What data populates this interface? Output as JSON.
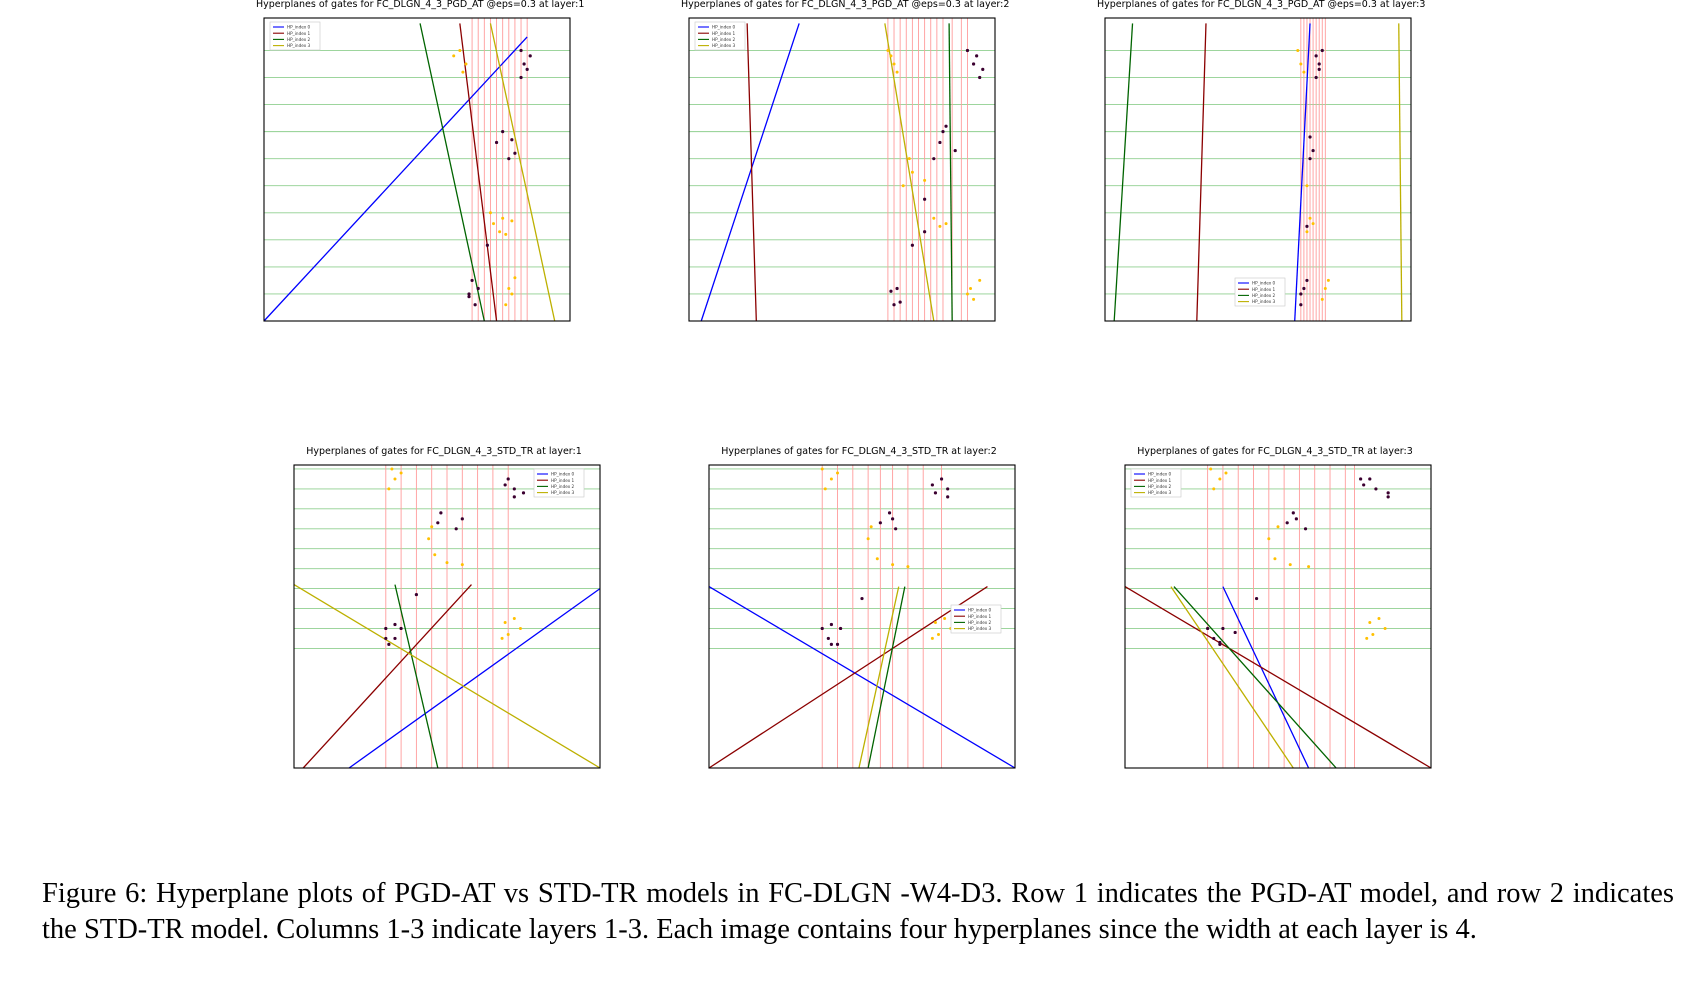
{
  "figure": {
    "caption": "Figure 6: Hyperplane plots of PGD-AT vs STD-TR models in FC-DLGN -W4-D3. Row 1 indicates the PGD-AT model, and row 2 indicates the STD-TR model. Columns 1-3 indicate layers 1-3. Each image contains four hyperplanes since the width at each layer is 4."
  },
  "colors": {
    "hp0": "#0000ff",
    "hp1": "#8b0000",
    "hp2": "#006400",
    "hp3": "#bdb000",
    "threshold_h": "#8fcf8f",
    "threshold_v": "#ff9c9c",
    "class0": "#3b0030",
    "class1": "#ffc000"
  },
  "legend_labels": [
    "HP_index 0",
    "HP_index 1",
    "HP_index 2",
    "HP_index 3"
  ],
  "chart_data": [
    {
      "type": "scatter",
      "title": "Hyperplanes of gates for FC_DLGN_4_3_PGD_AT @eps=0.3 at layer:1",
      "legend": "top-left",
      "hlines": [
        0.1,
        0.2,
        0.3,
        0.4,
        0.5,
        0.6,
        0.7,
        0.8,
        0.9,
        1.0
      ],
      "vlines": [
        0.68,
        0.7,
        0.72,
        0.74,
        0.76,
        0.78,
        0.8,
        0.82,
        0.84,
        0.86
      ],
      "hyperplanes": [
        {
          "p1": [
            0.0,
            0.0
          ],
          "p2": [
            0.86,
            1.05
          ]
        },
        {
          "p1": [
            0.76,
            0.0
          ],
          "p2": [
            0.64,
            1.1
          ]
        },
        {
          "p1": [
            0.72,
            0.0
          ],
          "p2": [
            0.51,
            1.1
          ]
        },
        {
          "p1": [
            0.95,
            0.0
          ],
          "p2": [
            0.74,
            1.1
          ]
        }
      ],
      "class0": [
        [
          0.67,
          0.1
        ],
        [
          0.68,
          0.15
        ],
        [
          0.7,
          0.12
        ],
        [
          0.69,
          0.06
        ],
        [
          0.67,
          0.09
        ],
        [
          0.73,
          0.28
        ],
        [
          0.8,
          0.6
        ],
        [
          0.82,
          0.62
        ],
        [
          0.81,
          0.67
        ],
        [
          0.76,
          0.66
        ],
        [
          0.78,
          0.7
        ],
        [
          0.84,
          0.9
        ],
        [
          0.86,
          0.93
        ],
        [
          0.85,
          0.95
        ],
        [
          0.87,
          0.98
        ],
        [
          0.84,
          1.0
        ]
      ],
      "class1": [
        [
          0.64,
          1.0
        ],
        [
          0.66,
          0.95
        ],
        [
          0.65,
          0.92
        ],
        [
          0.62,
          0.98
        ],
        [
          0.8,
          0.12
        ],
        [
          0.79,
          0.06
        ],
        [
          0.81,
          0.1
        ],
        [
          0.82,
          0.16
        ],
        [
          0.75,
          0.36
        ],
        [
          0.78,
          0.38
        ],
        [
          0.81,
          0.37
        ],
        [
          0.77,
          0.33
        ],
        [
          0.74,
          0.4
        ],
        [
          0.79,
          0.32
        ]
      ]
    },
    {
      "type": "scatter",
      "title": "Hyperplanes of gates for FC_DLGN_4_3_PGD_AT @eps=0.3 at layer:2",
      "legend": "top-left",
      "hlines": [
        0.1,
        0.2,
        0.3,
        0.4,
        0.5,
        0.6,
        0.7,
        0.8,
        0.9,
        1.0
      ],
      "vlines": [
        0.65,
        0.67,
        0.69,
        0.71,
        0.73,
        0.75,
        0.77,
        0.79,
        0.81,
        0.83,
        0.86,
        0.89,
        0.91
      ],
      "hyperplanes": [
        {
          "p1": [
            0.04,
            0.0
          ],
          "p2": [
            0.36,
            1.1
          ]
        },
        {
          "p1": [
            0.22,
            0.0
          ],
          "p2": [
            0.19,
            1.1
          ]
        },
        {
          "p1": [
            0.86,
            0.0
          ],
          "p2": [
            0.85,
            1.1
          ]
        },
        {
          "p1": [
            0.8,
            0.0
          ],
          "p2": [
            0.64,
            1.1
          ]
        }
      ],
      "class0": [
        [
          0.66,
          0.11
        ],
        [
          0.68,
          0.12
        ],
        [
          0.69,
          0.07
        ],
        [
          0.67,
          0.06
        ],
        [
          0.73,
          0.28
        ],
        [
          0.77,
          0.33
        ],
        [
          0.77,
          0.45
        ],
        [
          0.8,
          0.6
        ],
        [
          0.82,
          0.66
        ],
        [
          0.83,
          0.7
        ],
        [
          0.87,
          0.63
        ],
        [
          0.84,
          0.72
        ],
        [
          0.93,
          0.95
        ],
        [
          0.94,
          0.98
        ],
        [
          0.95,
          0.9
        ],
        [
          0.96,
          0.93
        ],
        [
          0.91,
          1.0
        ]
      ],
      "class1": [
        [
          0.65,
          1.0
        ],
        [
          0.67,
          0.95
        ],
        [
          0.68,
          0.92
        ],
        [
          0.66,
          0.98
        ],
        [
          0.7,
          0.5
        ],
        [
          0.73,
          0.55
        ],
        [
          0.72,
          0.6
        ],
        [
          0.77,
          0.52
        ],
        [
          0.8,
          0.38
        ],
        [
          0.84,
          0.36
        ],
        [
          0.82,
          0.35
        ],
        [
          0.92,
          0.12
        ],
        [
          0.93,
          0.08
        ],
        [
          0.95,
          0.15
        ],
        [
          0.91,
          0.1
        ]
      ]
    },
    {
      "type": "scatter",
      "title": "Hyperplanes of gates for FC_DLGN_4_3_PGD_AT @eps=0.3 at layer:3",
      "legend": "bottom-center",
      "hlines": [
        0.1,
        0.2,
        0.3,
        0.4,
        0.5,
        0.6,
        0.7,
        0.8,
        0.9,
        1.0
      ],
      "vlines": [
        0.64,
        0.65,
        0.66,
        0.67,
        0.68,
        0.69,
        0.7,
        0.71,
        0.72
      ],
      "hyperplanes": [
        {
          "p1": [
            0.62,
            0.0
          ],
          "p2": [
            0.67,
            1.1
          ]
        },
        {
          "p1": [
            0.3,
            0.0
          ],
          "p2": [
            0.33,
            1.1
          ]
        },
        {
          "p1": [
            0.03,
            0.0
          ],
          "p2": [
            0.09,
            1.1
          ]
        },
        {
          "p1": [
            0.97,
            0.0
          ],
          "p2": [
            0.96,
            1.1
          ]
        }
      ],
      "class0": [
        [
          0.64,
          0.1
        ],
        [
          0.65,
          0.12
        ],
        [
          0.64,
          0.06
        ],
        [
          0.66,
          0.15
        ],
        [
          0.66,
          0.35
        ],
        [
          0.67,
          0.6
        ],
        [
          0.68,
          0.63
        ],
        [
          0.67,
          0.68
        ],
        [
          0.69,
          0.9
        ],
        [
          0.7,
          0.95
        ],
        [
          0.69,
          0.98
        ],
        [
          0.7,
          0.93
        ],
        [
          0.71,
          1.0
        ]
      ],
      "class1": [
        [
          0.63,
          1.0
        ],
        [
          0.64,
          0.95
        ],
        [
          0.65,
          0.92
        ],
        [
          0.66,
          0.5
        ],
        [
          0.67,
          0.38
        ],
        [
          0.68,
          0.36
        ],
        [
          0.66,
          0.33
        ],
        [
          0.72,
          0.12
        ],
        [
          0.71,
          0.08
        ],
        [
          0.73,
          0.15
        ]
      ]
    },
    {
      "type": "scatter",
      "title": "Hyperplanes of gates for FC_DLGN_4_3_STD_TR at layer:1",
      "legend": "top-right",
      "hlines": [
        0.0,
        0.1,
        0.2,
        0.3,
        0.4,
        0.5,
        0.6,
        0.7,
        0.8,
        0.9
      ],
      "vlines": [
        0.3,
        0.35,
        0.4,
        0.45,
        0.5,
        0.55,
        0.6,
        0.65,
        0.7
      ],
      "hyperplanes": [
        {
          "p1": [
            0.18,
            -0.6
          ],
          "p2": [
            1.0,
            0.3
          ]
        },
        {
          "p1": [
            0.03,
            -0.6
          ],
          "p2": [
            0.58,
            0.32
          ]
        },
        {
          "p1": [
            0.47,
            -0.6
          ],
          "p2": [
            0.33,
            0.32
          ]
        },
        {
          "p1": [
            1.0,
            -0.6
          ],
          "p2": [
            0.0,
            0.32
          ]
        }
      ],
      "class0": [
        [
          0.3,
          0.1
        ],
        [
          0.33,
          0.05
        ],
        [
          0.31,
          0.02
        ],
        [
          0.33,
          0.12
        ],
        [
          0.35,
          0.1
        ],
        [
          0.3,
          0.05
        ],
        [
          0.4,
          0.27
        ],
        [
          0.47,
          0.63
        ],
        [
          0.48,
          0.68
        ],
        [
          0.53,
          0.6
        ],
        [
          0.55,
          0.65
        ],
        [
          0.69,
          0.82
        ],
        [
          0.7,
          0.85
        ],
        [
          0.72,
          0.8
        ],
        [
          0.75,
          0.78
        ],
        [
          0.72,
          0.76
        ]
      ],
      "class1": [
        [
          0.32,
          0.9
        ],
        [
          0.33,
          0.85
        ],
        [
          0.35,
          0.88
        ],
        [
          0.31,
          0.8
        ],
        [
          0.44,
          0.55
        ],
        [
          0.46,
          0.47
        ],
        [
          0.5,
          0.43
        ],
        [
          0.55,
          0.42
        ],
        [
          0.45,
          0.61
        ],
        [
          0.69,
          0.13
        ],
        [
          0.7,
          0.07
        ],
        [
          0.72,
          0.15
        ],
        [
          0.74,
          0.1
        ],
        [
          0.68,
          0.05
        ]
      ]
    },
    {
      "type": "scatter",
      "title": "Hyperplanes of gates for FC_DLGN_4_3_STD_TR at layer:2",
      "legend": "right",
      "hlines": [
        0.0,
        0.1,
        0.2,
        0.3,
        0.4,
        0.5,
        0.6,
        0.7,
        0.8,
        0.9
      ],
      "vlines": [
        0.37,
        0.42,
        0.47,
        0.52,
        0.56,
        0.6,
        0.65,
        0.7,
        0.76
      ],
      "hyperplanes": [
        {
          "p1": [
            1.0,
            -0.6
          ],
          "p2": [
            0.0,
            0.31
          ]
        },
        {
          "p1": [
            0.0,
            -0.6
          ],
          "p2": [
            0.91,
            0.31
          ]
        },
        {
          "p1": [
            0.52,
            -0.6
          ],
          "p2": [
            0.64,
            0.31
          ]
        },
        {
          "p1": [
            0.49,
            -0.6
          ],
          "p2": [
            0.62,
            0.31
          ]
        }
      ],
      "class0": [
        [
          0.37,
          0.1
        ],
        [
          0.39,
          0.05
        ],
        [
          0.42,
          0.02
        ],
        [
          0.4,
          0.12
        ],
        [
          0.43,
          0.1
        ],
        [
          0.4,
          0.02
        ],
        [
          0.5,
          0.25
        ],
        [
          0.56,
          0.63
        ],
        [
          0.59,
          0.68
        ],
        [
          0.61,
          0.6
        ],
        [
          0.6,
          0.65
        ],
        [
          0.73,
          0.82
        ],
        [
          0.76,
          0.85
        ],
        [
          0.78,
          0.8
        ],
        [
          0.74,
          0.78
        ],
        [
          0.78,
          0.76
        ]
      ],
      "class1": [
        [
          0.37,
          0.9
        ],
        [
          0.4,
          0.85
        ],
        [
          0.42,
          0.88
        ],
        [
          0.38,
          0.8
        ],
        [
          0.52,
          0.55
        ],
        [
          0.55,
          0.45
        ],
        [
          0.6,
          0.42
        ],
        [
          0.65,
          0.41
        ],
        [
          0.53,
          0.61
        ],
        [
          0.74,
          0.13
        ],
        [
          0.75,
          0.07
        ],
        [
          0.77,
          0.15
        ],
        [
          0.79,
          0.1
        ],
        [
          0.73,
          0.05
        ]
      ]
    },
    {
      "type": "scatter",
      "title": "Hyperplanes of gates for FC_DLGN_4_3_STD_TR at layer:3",
      "legend": "top-left",
      "hlines": [
        0.0,
        0.1,
        0.2,
        0.3,
        0.4,
        0.5,
        0.6,
        0.7,
        0.8,
        0.9
      ],
      "vlines": [
        0.27,
        0.32,
        0.37,
        0.42,
        0.47,
        0.52,
        0.57,
        0.62,
        0.67,
        0.72,
        0.75
      ],
      "hyperplanes": [
        {
          "p1": [
            0.6,
            -0.6
          ],
          "p2": [
            0.32,
            0.31
          ]
        },
        {
          "p1": [
            1.0,
            -0.6
          ],
          "p2": [
            0.0,
            0.31
          ]
        },
        {
          "p1": [
            0.69,
            -0.6
          ],
          "p2": [
            0.16,
            0.31
          ]
        },
        {
          "p1": [
            0.55,
            -0.6
          ],
          "p2": [
            0.15,
            0.31
          ]
        }
      ],
      "class0": [
        [
          0.27,
          0.1
        ],
        [
          0.29,
          0.05
        ],
        [
          0.31,
          0.03
        ],
        [
          0.32,
          0.1
        ],
        [
          0.36,
          0.08
        ],
        [
          0.31,
          0.02
        ],
        [
          0.43,
          0.25
        ],
        [
          0.53,
          0.63
        ],
        [
          0.55,
          0.68
        ],
        [
          0.59,
          0.6
        ],
        [
          0.56,
          0.65
        ],
        [
          0.78,
          0.82
        ],
        [
          0.8,
          0.85
        ],
        [
          0.82,
          0.8
        ],
        [
          0.86,
          0.78
        ],
        [
          0.86,
          0.76
        ],
        [
          0.77,
          0.85
        ]
      ],
      "class1": [
        [
          0.28,
          0.9
        ],
        [
          0.31,
          0.85
        ],
        [
          0.33,
          0.88
        ],
        [
          0.29,
          0.8
        ],
        [
          0.47,
          0.55
        ],
        [
          0.49,
          0.45
        ],
        [
          0.54,
          0.42
        ],
        [
          0.6,
          0.41
        ],
        [
          0.5,
          0.61
        ],
        [
          0.8,
          0.13
        ],
        [
          0.81,
          0.07
        ],
        [
          0.83,
          0.15
        ],
        [
          0.85,
          0.1
        ],
        [
          0.79,
          0.05
        ]
      ]
    }
  ]
}
